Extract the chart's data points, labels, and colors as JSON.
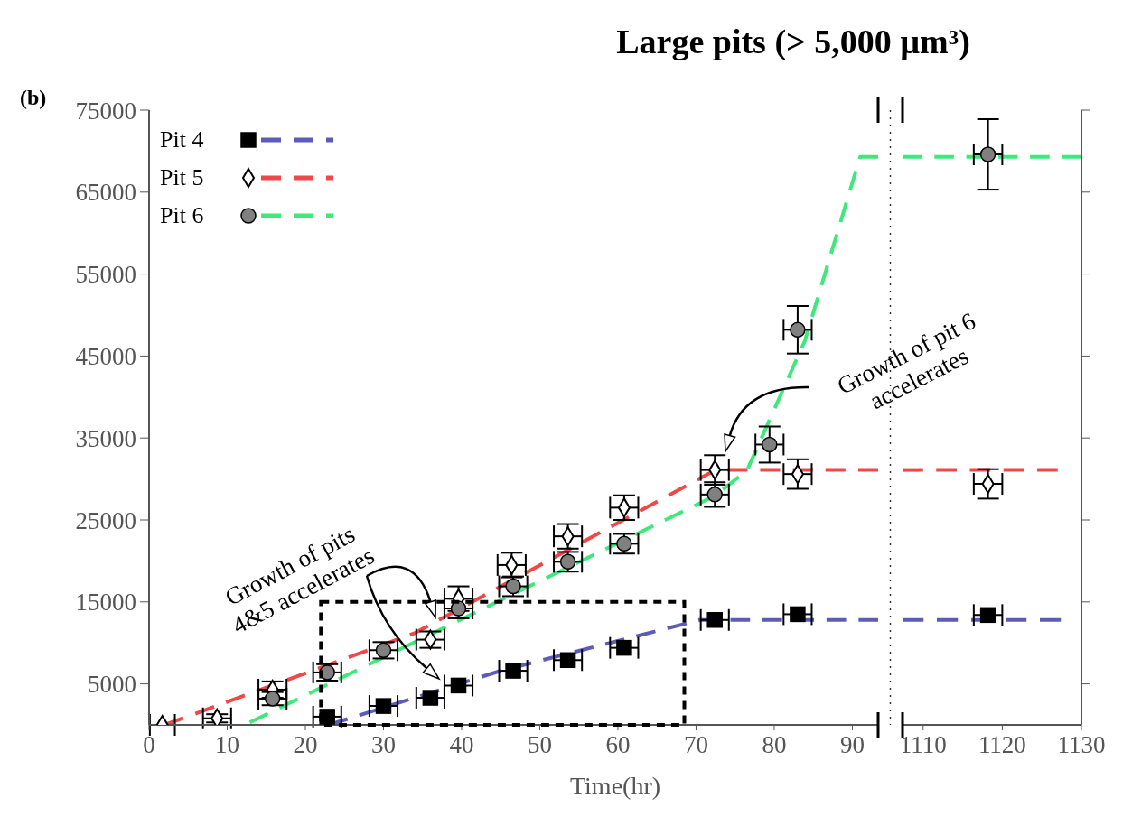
{
  "chart_data": [
    {
      "type": "scatter",
      "title": "Large pits (> 5,000 µm³)",
      "xlabel": "Time(hr)",
      "annotations": [
        "(b)",
        "Growth of pits\n4&5 accelerates",
        "Growth of pit 6\naccelerates"
      ],
      "legend": "top left",
      "xlim": [
        0,
        93.3
      ],
      "ylim": [
        0,
        75000
      ],
      "xticks": [
        0,
        10,
        20,
        30,
        40,
        50,
        60,
        70,
        80,
        90
      ],
      "yticks": [
        5000,
        15000,
        25000,
        35000,
        45000,
        55000,
        65000,
        75000
      ],
      "series": [
        {
          "name": "Pit 4",
          "type": "scatter",
          "marker": "square",
          "color": "#000000",
          "x": [
            22.8,
            30,
            36,
            39.6,
            46.6,
            53.6,
            60.8,
            72.4,
            83
          ],
          "values": [
            1000,
            2300,
            3300,
            4800,
            6600,
            7900,
            9400,
            12800,
            13500
          ],
          "xerrors": [
            1.8,
            1.8,
            1.8,
            1.8,
            1.8,
            1.8,
            1.8,
            1.8,
            1.8
          ]
        },
        {
          "name": "Pit 5",
          "type": "scatter",
          "marker": "diamond",
          "color": "#ffffff",
          "x": [
            1.7,
            8.7,
            15.8,
            36,
            39.6,
            46.4,
            53.6,
            60.8,
            72.4,
            83
          ],
          "values": [
            0,
            800,
            4300,
            10400,
            15400,
            19500,
            23000,
            26500,
            31100,
            30600
          ],
          "errors": [
            null,
            500,
            1000,
            1000,
            1500,
            1500,
            1500,
            1500,
            1800,
            1800
          ],
          "xerrors": [
            1.6,
            1.8,
            1.8,
            1.8,
            1.8,
            1.8,
            1.8,
            1.8,
            1.8,
            1.8
          ]
        },
        {
          "name": "Pit 6",
          "type": "scatter",
          "marker": "circle",
          "color": "#808080",
          "x": [
            15.8,
            22.8,
            30,
            39.6,
            46.6,
            53.6,
            60.8,
            72.4,
            79.4,
            83
          ],
          "values": [
            3200,
            6400,
            9100,
            14200,
            16900,
            19900,
            22100,
            28100,
            34200,
            48200
          ],
          "errors": [
            800,
            1000,
            1000,
            1200,
            1200,
            1200,
            1200,
            1500,
            2200,
            2900
          ],
          "xerrors": [
            1.8,
            1.8,
            1.8,
            1.8,
            1.8,
            1.8,
            1.8,
            1.8,
            1.8,
            1.8
          ]
        },
        {
          "type": "line",
          "line_style": "dashed",
          "color": "#5c5cb8",
          "x": [
            23,
            45,
            70.5,
            93.3
          ],
          "values": [
            0,
            6600,
            12800,
            12800
          ]
        },
        {
          "type": "line",
          "line_style": "dashed",
          "color": "#f04848",
          "x": [
            2,
            34,
            72.5,
            93.3
          ],
          "values": [
            0,
            11200,
            31100,
            31100
          ]
        },
        {
          "type": "line",
          "line_style": "dashed",
          "color": "#3ee87a",
          "x": [
            12.9,
            72.3,
            76.5,
            83.9,
            91,
            93.3
          ],
          "values": [
            300,
            27900,
            31000,
            46800,
            69300,
            69300
          ]
        }
      ]
    },
    {
      "type": "scatter",
      "tick_labels": "x",
      "xlim": [
        1107.4,
        1130
      ],
      "ylim": [
        0,
        75000
      ],
      "xticks": [
        1110,
        1120,
        1130
      ],
      "yticks": [
        5000,
        15000,
        25000,
        35000,
        45000,
        55000,
        65000,
        75000
      ],
      "series": [
        {
          "type": "scatter",
          "marker": "square",
          "color": "#000000",
          "x": [
            1118.2
          ],
          "values": [
            13400
          ],
          "xerrors": [
            1.8
          ]
        },
        {
          "type": "scatter",
          "marker": "diamond",
          "color": "#ffffff",
          "x": [
            1118.2
          ],
          "values": [
            29400
          ],
          "errors": [
            1800
          ],
          "xerrors": [
            1.8
          ]
        },
        {
          "type": "scatter",
          "marker": "circle",
          "color": "#808080",
          "x": [
            1118.2
          ],
          "values": [
            69600
          ],
          "errors": [
            4300
          ],
          "xerrors": [
            1.8
          ]
        },
        {
          "type": "line",
          "line_style": "dashed",
          "color": "#5c5cb8",
          "x": [
            1107.4,
            1127.4
          ],
          "values": [
            12800,
            12800
          ]
        },
        {
          "type": "line",
          "line_style": "dashed",
          "color": "#f04848",
          "x": [
            1107.4,
            1127
          ],
          "values": [
            31100,
            31100
          ]
        },
        {
          "type": "line",
          "line_style": "dashed",
          "color": "#3ee87a",
          "x": [
            1107.4,
            1130
          ],
          "values": [
            69300,
            69300
          ]
        }
      ]
    }
  ]
}
